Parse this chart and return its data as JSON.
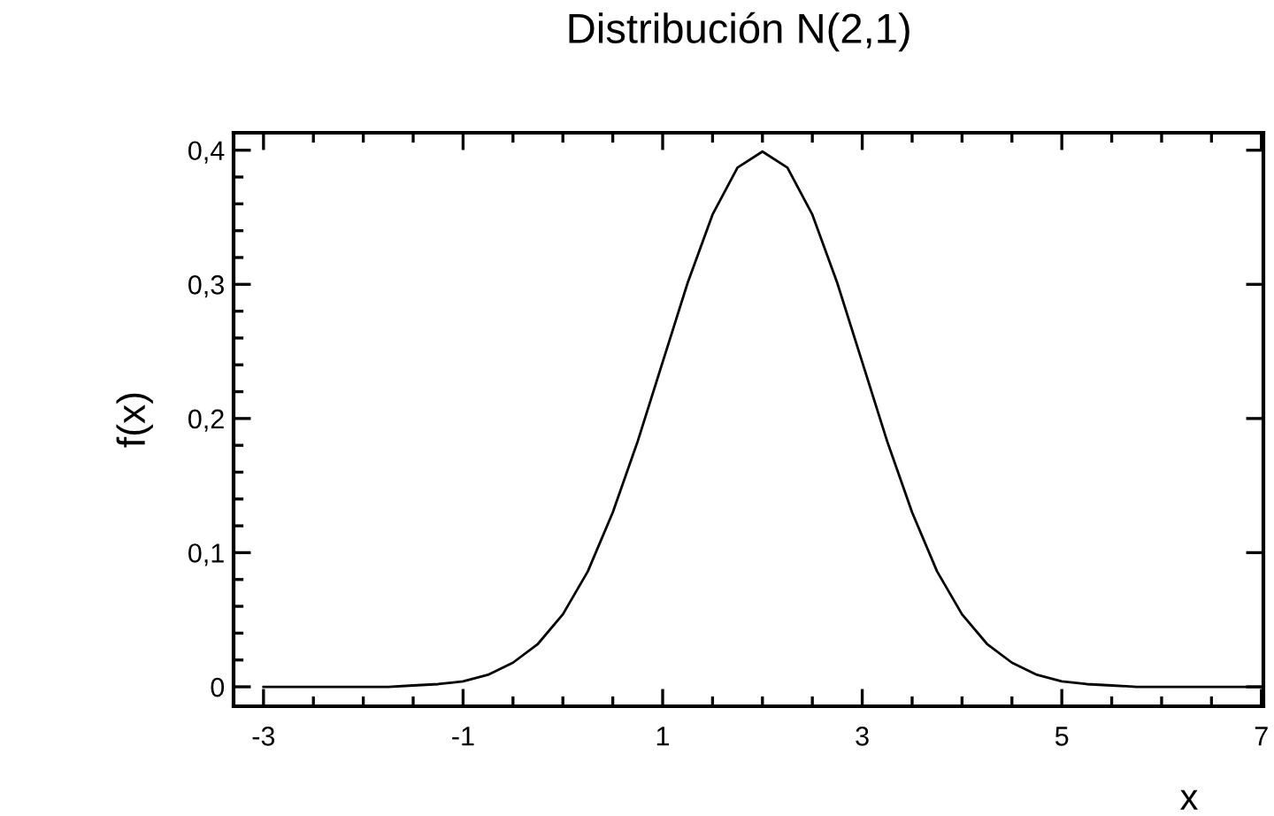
{
  "chart_data": {
    "type": "line",
    "title": "Distribución N(2,1)",
    "xlabel": "x",
    "ylabel": "f(x)",
    "x": [
      -3,
      -2.75,
      -2.5,
      -2.25,
      -2,
      -1.75,
      -1.5,
      -1.25,
      -1,
      -0.75,
      -0.5,
      -0.25,
      0,
      0.25,
      0.5,
      0.75,
      1,
      1.25,
      1.5,
      1.75,
      2,
      2.25,
      2.5,
      2.75,
      3,
      3.25,
      3.5,
      3.75,
      4,
      4.25,
      4.5,
      4.75,
      5,
      5.25,
      5.5,
      5.75,
      6,
      6.25,
      6.5,
      6.75,
      7
    ],
    "series": [
      {
        "color": "#000000",
        "values": [
          0,
          0,
          0,
          0,
          0,
          0,
          0.001,
          0.002,
          0.004,
          0.009,
          0.018,
          0.032,
          0.054,
          0.086,
          0.13,
          0.183,
          0.242,
          0.301,
          0.352,
          0.387,
          0.399,
          0.387,
          0.352,
          0.301,
          0.242,
          0.183,
          0.13,
          0.086,
          0.054,
          0.032,
          0.018,
          0.009,
          0.004,
          0.002,
          0.001,
          0,
          0,
          0,
          0,
          0,
          0
        ]
      }
    ],
    "xlim": [
      -3.3,
      7.02
    ],
    "ylim": [
      -0.0145,
      0.413
    ],
    "xticks": [
      -3,
      -1,
      1,
      3,
      5,
      7
    ],
    "yticks": [
      0,
      {
        "value": 0.1,
        "label": "0,1"
      },
      {
        "value": 0.2,
        "label": "0,2"
      },
      {
        "value": 0.3,
        "label": "0,3"
      },
      {
        "value": 0.4,
        "label": "0,4"
      }
    ],
    "grid": false,
    "legend": false,
    "marker": "none",
    "line_style": "solid"
  }
}
